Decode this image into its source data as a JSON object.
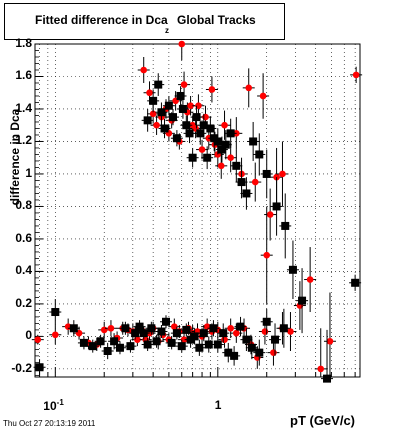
{
  "page": {
    "title_main": "Fitted difference in Dca",
    "title_sub": "z",
    "title_tail": "Global Tracks",
    "timestamp": "Thu Oct 27 20:13:19 2011"
  },
  "chart_data": {
    "type": "scatter",
    "xlabel": "pT (GeV/c)",
    "ylabel": "difference in Dca",
    "xscale": "log",
    "xlim": [
      0.075,
      7.5
    ],
    "ylim": [
      -0.25,
      1.8
    ],
    "grid": true,
    "yticks": [
      "1.8",
      "1.6",
      "1.4",
      "1.2",
      "1",
      "0.8",
      "0.6",
      "0.4",
      "0.2",
      "0",
      "-0.2"
    ],
    "xticks": [
      {
        "base": "10",
        "exp": "-1"
      },
      {
        "base": "1",
        "exp": ""
      }
    ],
    "colors": {
      "red": "#ff0000",
      "black": "#000000"
    },
    "series": [
      {
        "color": "red",
        "points": [
          [
            0.078,
            -0.02,
            0.03
          ],
          [
            0.1,
            0.01,
            0.06
          ],
          [
            0.12,
            0.06,
            0.05
          ],
          [
            0.14,
            0.02,
            0.04
          ],
          [
            0.16,
            -0.04,
            0.04
          ],
          [
            0.18,
            -0.05,
            0.04
          ],
          [
            0.2,
            0.04,
            0.05
          ],
          [
            0.22,
            0.05,
            0.05
          ],
          [
            0.24,
            -0.01,
            0.04
          ],
          [
            0.26,
            0.05,
            0.04
          ],
          [
            0.28,
            0.04,
            0.04
          ],
          [
            0.3,
            0.03,
            0.05
          ],
          [
            0.32,
            -0.02,
            0.04
          ],
          [
            0.34,
            0.04,
            0.04
          ],
          [
            0.36,
            -0.02,
            0.04
          ],
          [
            0.38,
            0.02,
            0.04
          ],
          [
            0.4,
            0.05,
            0.04
          ],
          [
            0.43,
            -0.03,
            0.05
          ],
          [
            0.46,
            0.01,
            0.04
          ],
          [
            0.5,
            -0.02,
            0.04
          ],
          [
            0.54,
            0.06,
            0.05
          ],
          [
            0.58,
            0.03,
            0.04
          ],
          [
            0.62,
            -0.02,
            0.04
          ],
          [
            0.66,
            0.05,
            0.04
          ],
          [
            0.7,
            0.02,
            0.05
          ],
          [
            0.75,
            0.03,
            0.05
          ],
          [
            0.8,
            0.0,
            0.05
          ],
          [
            0.86,
            0.06,
            0.05
          ],
          [
            0.92,
            0.03,
            0.05
          ],
          [
            1.0,
            0.04,
            0.05
          ],
          [
            1.1,
            -0.02,
            0.05
          ],
          [
            1.2,
            0.05,
            0.06
          ],
          [
            1.3,
            0.02,
            0.06
          ],
          [
            1.45,
            0.05,
            0.06
          ],
          [
            1.6,
            -0.05,
            0.06
          ],
          [
            1.75,
            -0.13,
            0.07
          ],
          [
            1.95,
            0.03,
            0.08
          ],
          [
            2.2,
            -0.1,
            0.08
          ],
          [
            2.5,
            0.05,
            0.1
          ],
          [
            2.8,
            0.03,
            0.12
          ],
          [
            3.2,
            0.19,
            0.15
          ],
          [
            3.7,
            0.35,
            0.2
          ],
          [
            4.3,
            -0.2,
            0.25
          ],
          [
            4.9,
            -0.03,
            0.3
          ],
          [
            7.1,
            1.61,
            0.05
          ],
          [
            0.35,
            1.64,
            0.08
          ],
          [
            0.38,
            1.5,
            0.07
          ],
          [
            0.4,
            1.37,
            0.06
          ],
          [
            0.42,
            1.3,
            0.06
          ],
          [
            0.45,
            1.35,
            0.06
          ],
          [
            0.48,
            1.4,
            0.06
          ],
          [
            0.5,
            1.25,
            0.05
          ],
          [
            0.52,
            1.33,
            0.05
          ],
          [
            0.55,
            1.45,
            0.06
          ],
          [
            0.58,
            1.2,
            0.05
          ],
          [
            0.6,
            1.8,
            0.1
          ],
          [
            0.62,
            1.55,
            0.08
          ],
          [
            0.65,
            1.38,
            0.06
          ],
          [
            0.68,
            1.42,
            0.06
          ],
          [
            0.7,
            1.3,
            0.06
          ],
          [
            0.73,
            1.28,
            0.06
          ],
          [
            0.76,
            1.42,
            0.07
          ],
          [
            0.8,
            1.15,
            0.06
          ],
          [
            0.84,
            1.35,
            0.07
          ],
          [
            0.88,
            1.22,
            0.07
          ],
          [
            0.92,
            1.52,
            0.08
          ],
          [
            0.96,
            1.18,
            0.08
          ],
          [
            1.0,
            1.12,
            0.08
          ],
          [
            1.05,
            1.05,
            0.08
          ],
          [
            1.1,
            1.3,
            0.09
          ],
          [
            1.2,
            1.1,
            0.09
          ],
          [
            1.3,
            1.25,
            0.1
          ],
          [
            1.4,
            1.0,
            0.1
          ],
          [
            1.55,
            1.53,
            0.12
          ],
          [
            1.7,
            0.95,
            0.12
          ],
          [
            1.9,
            1.48,
            0.14
          ],
          [
            2.1,
            0.75,
            0.16
          ],
          [
            2.3,
            0.98,
            0.18
          ],
          [
            2.5,
            1.0,
            0.2
          ],
          [
            2.0,
            0.5,
            0.3
          ]
        ]
      },
      {
        "color": "black",
        "points": [
          [
            0.08,
            -0.19,
            0.05
          ],
          [
            0.1,
            0.15,
            0.08
          ],
          [
            0.13,
            0.05,
            0.05
          ],
          [
            0.15,
            -0.04,
            0.04
          ],
          [
            0.17,
            -0.06,
            0.04
          ],
          [
            0.19,
            -0.03,
            0.04
          ],
          [
            0.21,
            -0.09,
            0.05
          ],
          [
            0.23,
            -0.03,
            0.05
          ],
          [
            0.25,
            -0.07,
            0.04
          ],
          [
            0.27,
            0.05,
            0.04
          ],
          [
            0.29,
            -0.06,
            0.04
          ],
          [
            0.31,
            0.02,
            0.04
          ],
          [
            0.33,
            0.06,
            0.04
          ],
          [
            0.35,
            0.02,
            0.04
          ],
          [
            0.37,
            -0.05,
            0.04
          ],
          [
            0.39,
            0.05,
            0.04
          ],
          [
            0.42,
            -0.03,
            0.04
          ],
          [
            0.45,
            0.03,
            0.04
          ],
          [
            0.48,
            0.09,
            0.04
          ],
          [
            0.52,
            -0.04,
            0.04
          ],
          [
            0.56,
            0.02,
            0.04
          ],
          [
            0.6,
            -0.06,
            0.04
          ],
          [
            0.64,
            0.04,
            0.04
          ],
          [
            0.68,
            -0.02,
            0.05
          ],
          [
            0.72,
            0.0,
            0.05
          ],
          [
            0.77,
            -0.07,
            0.05
          ],
          [
            0.82,
            0.02,
            0.05
          ],
          [
            0.88,
            -0.05,
            0.05
          ],
          [
            0.94,
            0.05,
            0.05
          ],
          [
            1.0,
            -0.05,
            0.05
          ],
          [
            1.08,
            0.02,
            0.06
          ],
          [
            1.16,
            -0.1,
            0.06
          ],
          [
            1.26,
            -0.12,
            0.06
          ],
          [
            1.38,
            0.06,
            0.06
          ],
          [
            1.5,
            -0.02,
            0.07
          ],
          [
            1.62,
            -0.07,
            0.07
          ],
          [
            1.8,
            -0.1,
            0.08
          ],
          [
            2.0,
            0.09,
            0.08
          ],
          [
            2.25,
            -0.02,
            0.1
          ],
          [
            2.55,
            0.05,
            0.12
          ],
          [
            2.9,
            0.41,
            0.18
          ],
          [
            3.3,
            0.22,
            0.2
          ],
          [
            4.7,
            -0.26,
            0.3
          ],
          [
            7.0,
            0.33,
            0.05
          ],
          [
            0.37,
            1.33,
            0.07
          ],
          [
            0.4,
            1.45,
            0.07
          ],
          [
            0.43,
            1.55,
            0.07
          ],
          [
            0.45,
            1.38,
            0.06
          ],
          [
            0.47,
            1.28,
            0.06
          ],
          [
            0.5,
            1.42,
            0.06
          ],
          [
            0.53,
            1.35,
            0.05
          ],
          [
            0.56,
            1.22,
            0.05
          ],
          [
            0.59,
            1.48,
            0.06
          ],
          [
            0.61,
            1.4,
            0.06
          ],
          [
            0.64,
            1.3,
            0.06
          ],
          [
            0.67,
            1.25,
            0.06
          ],
          [
            0.7,
            1.1,
            0.06
          ],
          [
            0.74,
            1.35,
            0.07
          ],
          [
            0.78,
            1.25,
            0.07
          ],
          [
            0.82,
            1.3,
            0.07
          ],
          [
            0.86,
            1.1,
            0.07
          ],
          [
            0.9,
            1.28,
            0.07
          ],
          [
            0.95,
            1.22,
            0.08
          ],
          [
            1.0,
            1.2,
            0.08
          ],
          [
            1.06,
            1.15,
            0.08
          ],
          [
            1.12,
            1.18,
            0.09
          ],
          [
            1.2,
            1.25,
            0.09
          ],
          [
            1.3,
            1.05,
            0.1
          ],
          [
            1.4,
            0.95,
            0.1
          ],
          [
            1.5,
            0.88,
            0.1
          ],
          [
            1.65,
            1.2,
            0.12
          ],
          [
            1.8,
            1.12,
            0.13
          ],
          [
            2.0,
            1.0,
            0.15
          ],
          [
            2.3,
            0.8,
            0.18
          ],
          [
            2.6,
            0.68,
            0.2
          ]
        ]
      }
    ]
  }
}
